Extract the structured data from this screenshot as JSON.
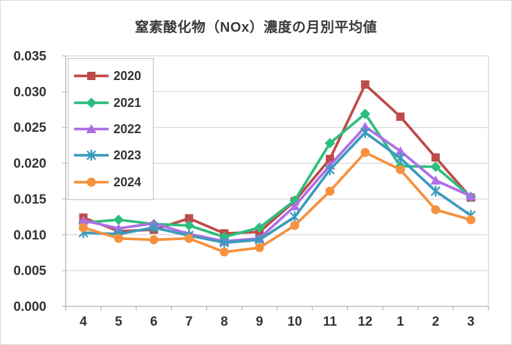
{
  "title": "窒素酸化物（NOx）濃度の月別平均値",
  "colors": {
    "grid": "#d9d9d9",
    "axis": "#b7b7b7",
    "tick": "#b7b7b7",
    "text": "#333333",
    "plot_background": "#ffffff"
  },
  "chart_data": {
    "type": "line",
    "title": "窒素酸化物（NOx）濃度の月別平均値",
    "xlabel": "",
    "ylabel": "",
    "categories": [
      "4",
      "5",
      "6",
      "7",
      "8",
      "9",
      "10",
      "11",
      "12",
      "1",
      "2",
      "3"
    ],
    "series": [
      {
        "name": "2020",
        "color": "#be4b48",
        "marker": "square",
        "values": [
          0.0124,
          0.0105,
          0.0107,
          0.0123,
          0.0102,
          0.0104,
          0.0147,
          0.0206,
          0.031,
          0.0265,
          0.0208,
          0.0152
        ]
      },
      {
        "name": "2021",
        "color": "#2dbe7e",
        "marker": "diamond",
        "values": [
          0.0117,
          0.0121,
          0.0115,
          0.0113,
          0.0097,
          0.011,
          0.0148,
          0.0228,
          0.0269,
          0.0196,
          0.0195,
          0.0153
        ]
      },
      {
        "name": "2022",
        "color": "#ae6ee6",
        "marker": "triangle",
        "values": [
          0.012,
          0.0109,
          0.0116,
          0.0101,
          0.0091,
          0.0095,
          0.014,
          0.0197,
          0.0251,
          0.0217,
          0.0176,
          0.0154
        ]
      },
      {
        "name": "2023",
        "color": "#3b9bbd",
        "marker": "asterisk",
        "values": [
          0.0103,
          0.0101,
          0.011,
          0.0099,
          0.0089,
          0.0093,
          0.0125,
          0.0191,
          0.0243,
          0.0207,
          0.0161,
          0.0127
        ]
      },
      {
        "name": "2024",
        "color": "#f6913e",
        "marker": "circle",
        "values": [
          0.011,
          0.0095,
          0.0093,
          0.0095,
          0.0076,
          0.0082,
          0.0113,
          0.0161,
          0.0215,
          0.0191,
          0.0135,
          0.0121
        ]
      }
    ],
    "ylim": [
      0,
      0.035
    ],
    "ytick_step": 0.005,
    "ytick_labels": [
      "0.000",
      "0.005",
      "0.010",
      "0.015",
      "0.020",
      "0.025",
      "0.030",
      "0.035"
    ],
    "grid": true,
    "legend_position": "top-left-inside"
  }
}
